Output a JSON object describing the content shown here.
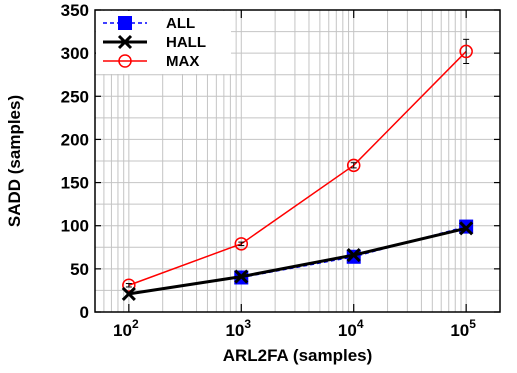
{
  "chart_data": {
    "type": "line",
    "title": "",
    "xlabel": "ARL2FA (samples)",
    "ylabel": "SADD (samples)",
    "x_scale": "log",
    "x_ticks": [
      {
        "value": 100,
        "base": "10",
        "exp": "2"
      },
      {
        "value": 1000,
        "base": "10",
        "exp": "3"
      },
      {
        "value": 10000,
        "base": "10",
        "exp": "4"
      },
      {
        "value": 100000,
        "base": "10",
        "exp": "5"
      }
    ],
    "xlim": [
      50,
      200000
    ],
    "ylim": [
      0,
      350
    ],
    "y_ticks": [
      "0",
      "50",
      "100",
      "150",
      "200",
      "250",
      "300",
      "350"
    ],
    "grid": true,
    "legend_position": "top-left",
    "series": [
      {
        "name": "ALL",
        "color": "#0000ff",
        "line_style": "dashed",
        "marker": "square",
        "x": [
          1000,
          10000,
          100000
        ],
        "y": [
          40,
          64,
          99
        ]
      },
      {
        "name": "HALL",
        "color": "#000000",
        "line_style": "solid",
        "marker": "x",
        "x": [
          100,
          1000,
          10000,
          100000
        ],
        "y": [
          21,
          41,
          66,
          97
        ]
      },
      {
        "name": "MAX",
        "color": "#ff0000",
        "line_style": "solid",
        "marker": "circle",
        "x": [
          100,
          1000,
          10000,
          100000
        ],
        "y": [
          31,
          79,
          170,
          302
        ],
        "err": [
          2,
          2,
          3,
          14
        ]
      }
    ]
  }
}
